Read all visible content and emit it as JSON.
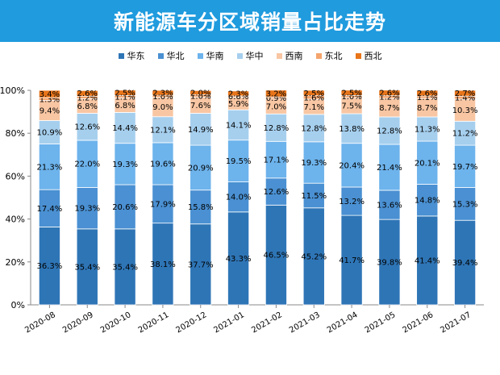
{
  "header": {
    "title": "新能源车分区域销量占比走势"
  },
  "chart_data": {
    "type": "bar",
    "stacked": true,
    "title": "新能源车分区域销量占比走势",
    "xlabel": "",
    "ylabel": "",
    "ylim": [
      0,
      100
    ],
    "yticks": [
      "0%",
      "20%",
      "40%",
      "60%",
      "80%",
      "100%"
    ],
    "grid": false,
    "legend_position": "top",
    "categories": [
      "2020-08",
      "2020-09",
      "2020-10",
      "2020-11",
      "2020-12",
      "2021-01",
      "2021-02",
      "2021-03",
      "2021-04",
      "2021-05",
      "2021-06",
      "2021-07"
    ],
    "series": [
      {
        "name": "华东",
        "color": "#2e75b6",
        "values": [
          36.3,
          35.4,
          35.4,
          38.1,
          37.7,
          43.3,
          46.5,
          45.2,
          41.7,
          39.8,
          41.4,
          39.4
        ]
      },
      {
        "name": "华北",
        "color": "#4a90d2",
        "values": [
          17.4,
          19.3,
          20.6,
          17.9,
          15.8,
          14.0,
          12.6,
          11.5,
          13.2,
          13.6,
          14.8,
          15.3
        ]
      },
      {
        "name": "华南",
        "color": "#6db3ec",
        "values": [
          21.3,
          22.0,
          19.3,
          19.6,
          20.9,
          19.5,
          17.1,
          19.3,
          20.4,
          21.4,
          20.1,
          19.7
        ]
      },
      {
        "name": "华中",
        "color": "#a6cfee",
        "values": [
          10.9,
          12.6,
          14.4,
          12.1,
          14.9,
          14.1,
          12.8,
          12.8,
          13.8,
          12.8,
          11.3,
          11.2
        ]
      },
      {
        "name": "西南",
        "color": "#f8c6a3",
        "values": [
          9.4,
          6.8,
          6.8,
          9.0,
          7.6,
          5.9,
          7.0,
          7.1,
          7.5,
          8.7,
          8.7,
          10.3
        ]
      },
      {
        "name": "东北",
        "color": "#f4a46c",
        "values": [
          1.3,
          1.2,
          1.1,
          1.0,
          1.0,
          0.6,
          0.9,
          1.6,
          1.0,
          1.2,
          1.1,
          1.4
        ]
      },
      {
        "name": "西北",
        "color": "#e8751a",
        "values": [
          3.4,
          2.6,
          2.5,
          2.3,
          2.0,
          2.3,
          3.2,
          2.5,
          2.5,
          2.6,
          2.6,
          2.7
        ]
      }
    ]
  }
}
